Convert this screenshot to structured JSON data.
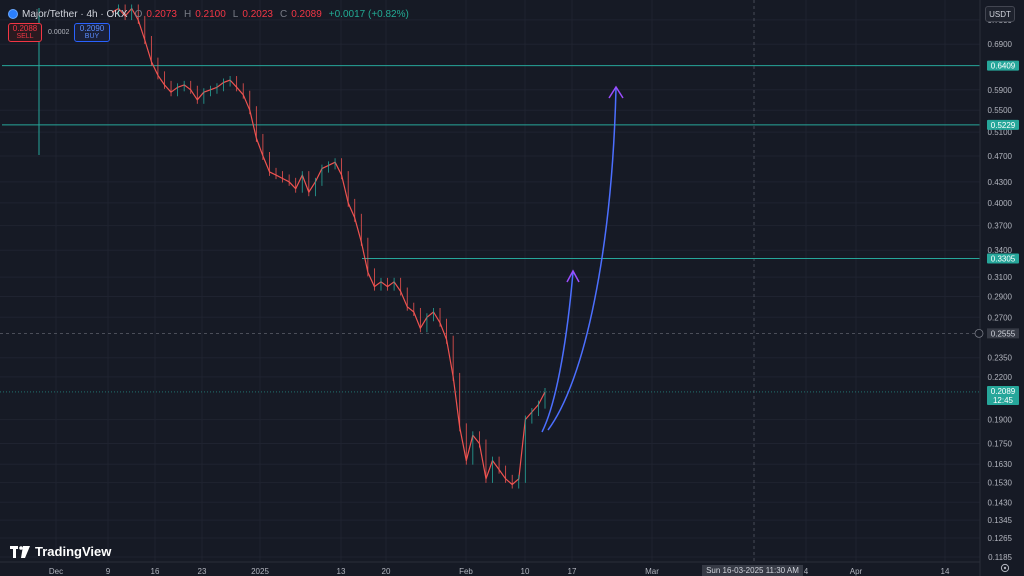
{
  "legend": {
    "symbol": "Major/Tether · 4h · OKX",
    "open_label": "O",
    "open": "0.2073",
    "high_label": "H",
    "high": "0.2100",
    "low_label": "L",
    "low": "0.2023",
    "close_label": "C",
    "close": "0.2089",
    "change": "+0.0017 (+0.82%)"
  },
  "trade": {
    "sell_price": "0.2088",
    "sell_label": "SELL",
    "spread": "0.0002",
    "buy_price": "0.2090",
    "buy_label": "BUY"
  },
  "currency": "USDT",
  "watermark": "TradingView",
  "crosshair_date": "Sun 16-03-2025   11:30 AM",
  "colors": {
    "background": "#161a25",
    "up": "#26a69a",
    "down": "#ef5350",
    "level": "#26a69a",
    "arrow": "#4c6fff",
    "arrowhead": "#9c4dff"
  },
  "chart_data": {
    "type": "line",
    "series": [
      {
        "values": [
          0.77,
          0.78,
          0.76,
          0.78,
          0.75,
          0.7,
          0.65,
          0.62,
          0.6,
          0.585,
          0.595,
          0.6,
          0.59,
          0.57,
          0.585,
          0.59,
          0.595,
          0.605,
          0.61,
          0.595,
          0.58,
          0.55,
          0.5,
          0.47,
          0.445,
          0.44,
          0.435,
          0.43,
          0.42,
          0.44,
          0.415,
          0.43,
          0.45,
          0.455,
          0.46,
          0.44,
          0.4,
          0.38,
          0.35,
          0.315,
          0.3,
          0.305,
          0.3,
          0.305,
          0.295,
          0.28,
          0.275,
          0.26,
          0.27,
          0.275,
          0.265,
          0.25,
          0.22,
          0.185,
          0.165,
          0.18,
          0.175,
          0.155,
          0.165,
          0.16,
          0.155,
          0.152,
          0.155,
          0.19,
          0.195,
          0.2,
          0.2089
        ]
      }
    ],
    "x_ticks": [
      "Dec",
      "9",
      "16",
      "23",
      "2025",
      "13",
      "20",
      "Feb",
      "10",
      "17",
      "Mar",
      "4",
      "Apr",
      "14"
    ],
    "y_ticks": [
      "0.7500",
      "0.6900",
      "0.5900",
      "0.5500",
      "0.5100",
      "0.4700",
      "0.4300",
      "0.4000",
      "0.3700",
      "0.3400",
      "0.3100",
      "0.2900",
      "0.2700",
      "0.2350",
      "0.2200",
      "0.1900",
      "0.1750",
      "0.1630",
      "0.1530",
      "0.1430",
      "0.1345",
      "0.1265",
      "0.1185"
    ],
    "ylim": [
      0.115,
      0.82
    ],
    "scale": "log",
    "levels": [
      {
        "value": 0.6409,
        "label": "0.6409"
      },
      {
        "value": 0.5229,
        "label": "0.5229"
      },
      {
        "value": 0.3305,
        "label": "0.3305"
      }
    ],
    "crosshair": {
      "value": 0.2555,
      "label": "0.2555"
    },
    "last_price": {
      "value": 0.2089,
      "label": "0.2089",
      "countdown": "12:45"
    },
    "grid": true
  }
}
